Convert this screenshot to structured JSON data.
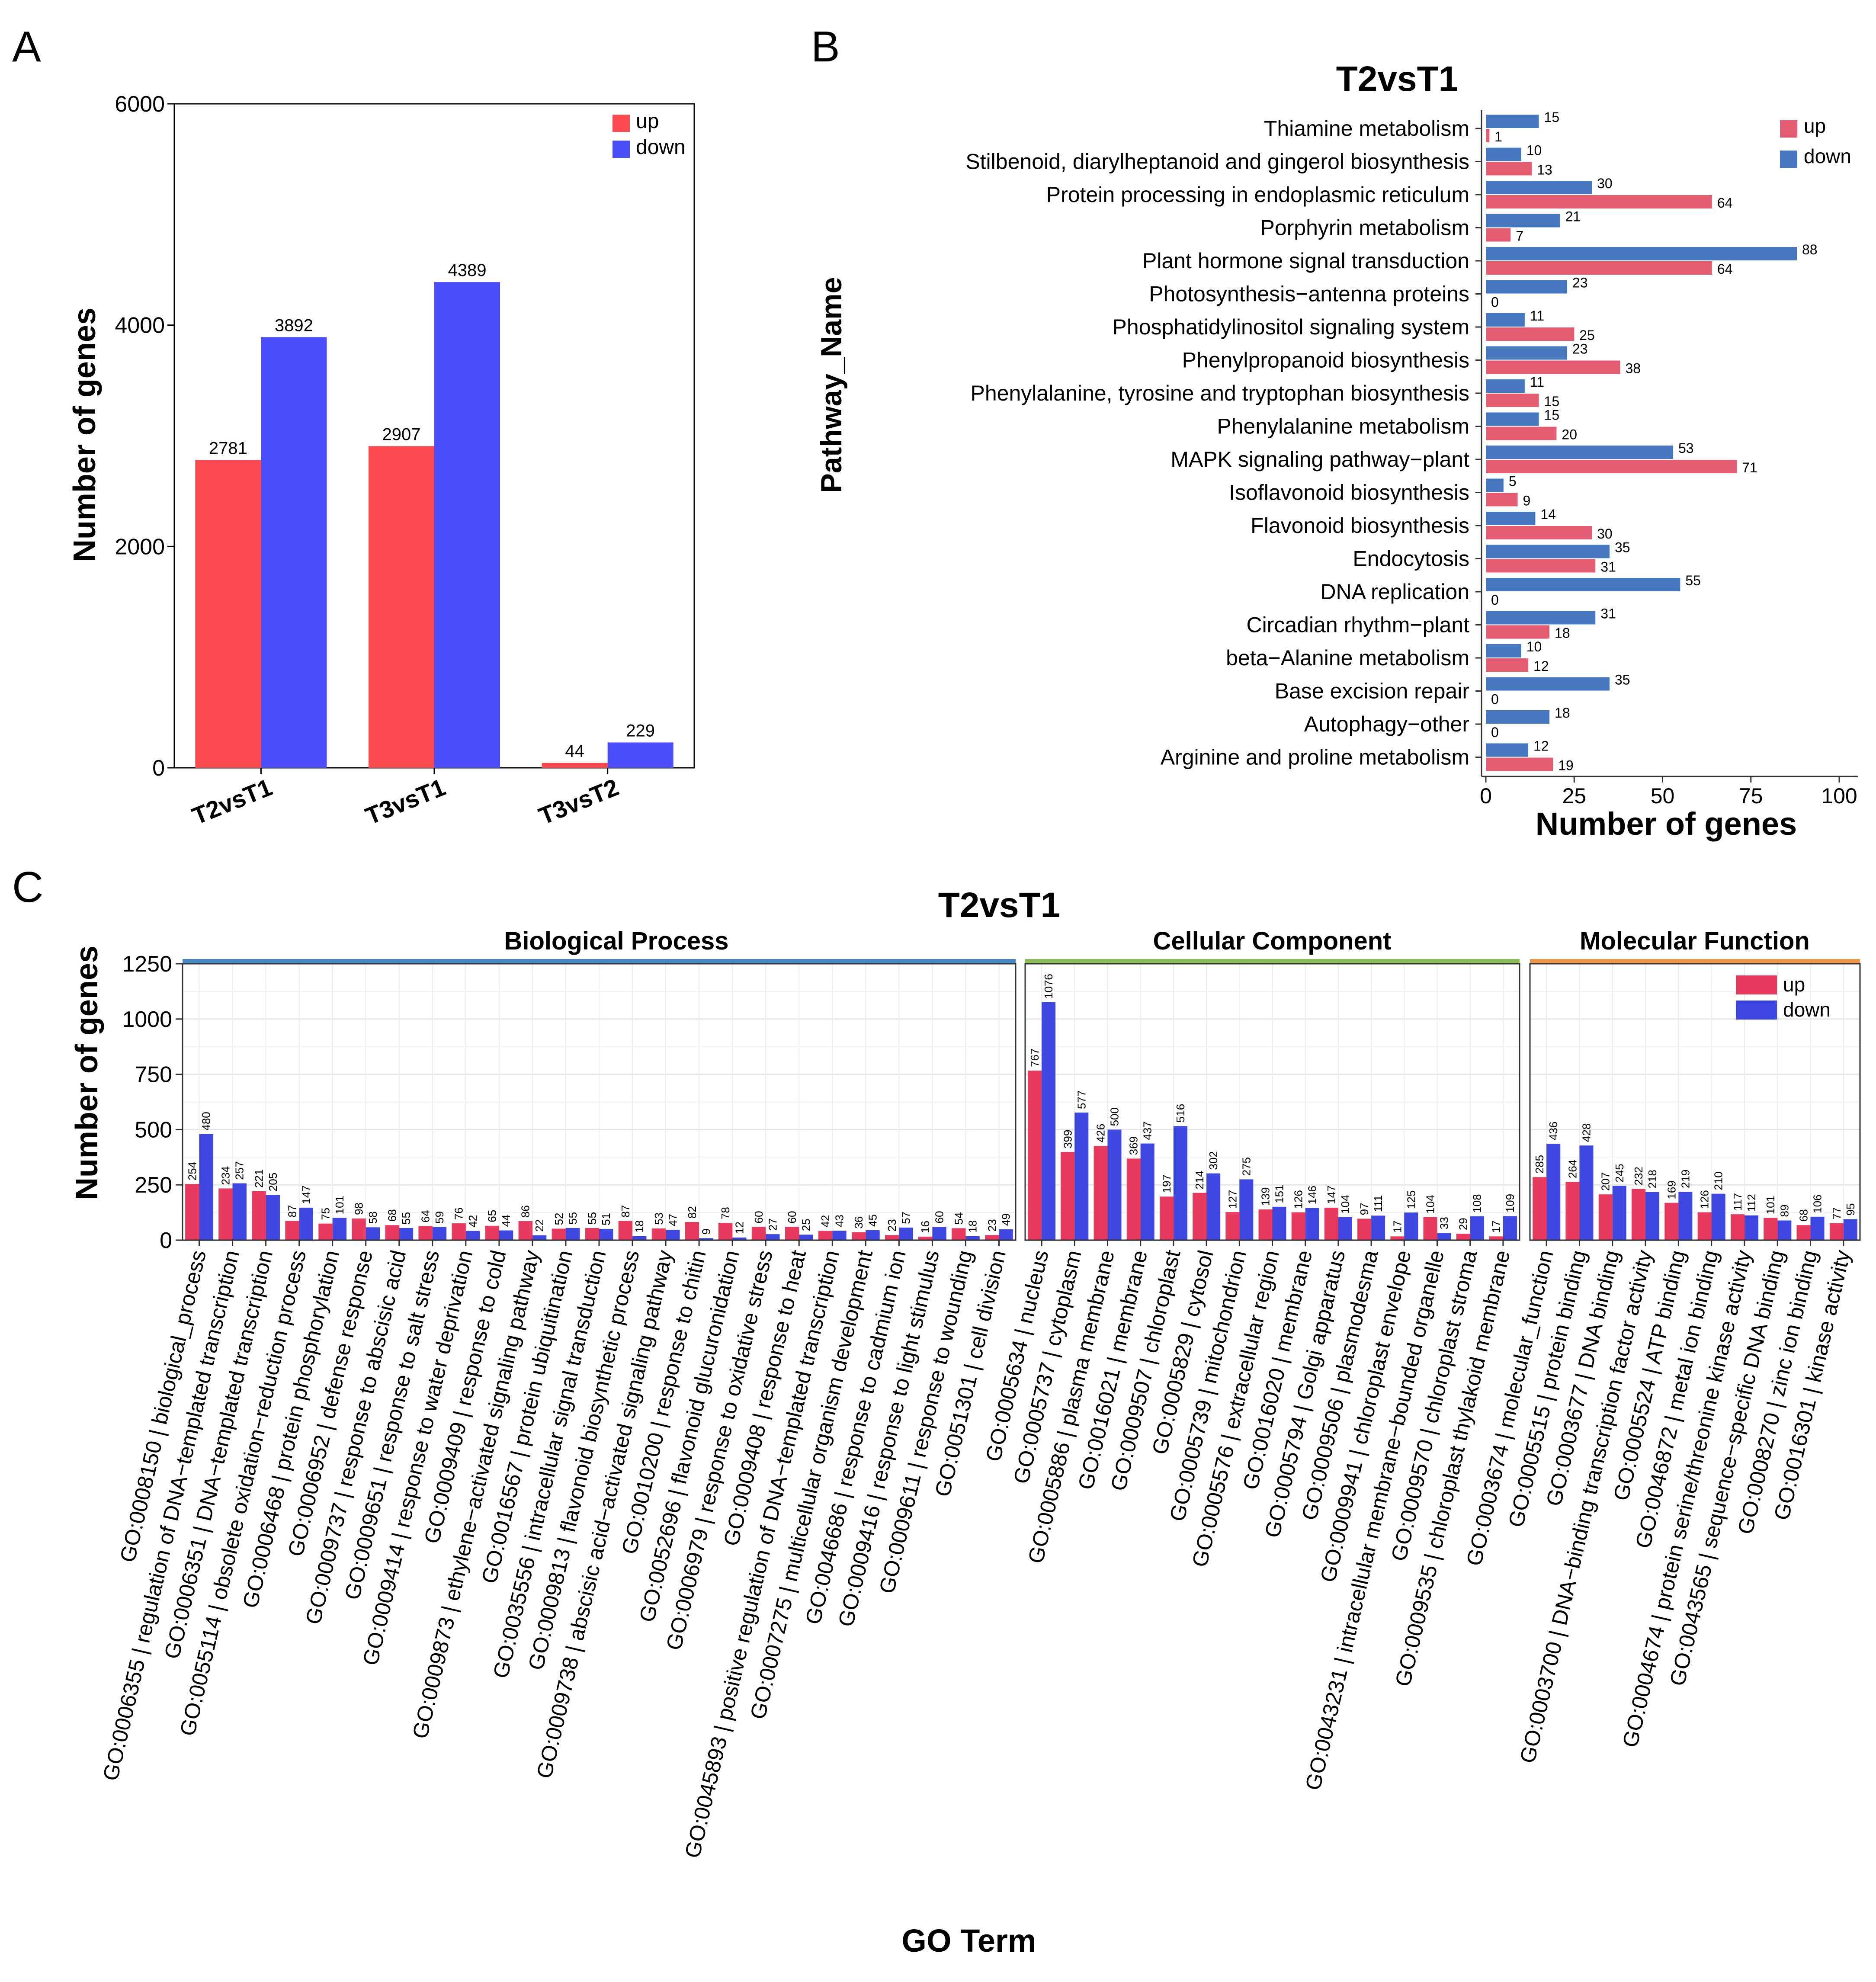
{
  "panel_labels": {
    "a": "A",
    "b": "B",
    "c": "C"
  },
  "colors": {
    "a_up": "#fb4a4f",
    "a_down": "#4a4cf7",
    "b_up": "#e45c72",
    "b_down": "#4677bf",
    "c_up": "#e83a5f",
    "c_down": "#3e48e0",
    "bp": "#4a89c8",
    "cc": "#8dbf5a",
    "mf": "#f0984a"
  },
  "chart_data": [
    {
      "id": "A",
      "type": "bar",
      "title": "",
      "xlabel": "",
      "ylabel": "Number of genes",
      "ylim": [
        0,
        6000
      ],
      "yticks": [
        0,
        2000,
        4000,
        6000
      ],
      "categories": [
        "T2vsT1",
        "T3vsT1",
        "T3vsT2"
      ],
      "series": [
        {
          "name": "up",
          "values": [
            2781,
            2907,
            44
          ]
        },
        {
          "name": "down",
          "values": [
            3892,
            4389,
            229
          ]
        }
      ],
      "legend": "top-right",
      "grid": false
    },
    {
      "id": "B",
      "type": "bar",
      "orientation": "horizontal",
      "title": "T2vsT1",
      "xlabel": "Number of genes",
      "ylabel": "Pathway_Name",
      "xlim": [
        0,
        100
      ],
      "xticks": [
        0,
        25,
        50,
        75,
        100
      ],
      "categories": [
        "Thiamine metabolism",
        "Stilbenoid, diarylheptanoid and gingerol biosynthesis",
        "Protein processing in endoplasmic reticulum",
        "Porphyrin metabolism",
        "Plant hormone signal transduction",
        "Photosynthesis−antenna proteins",
        "Phosphatidylinositol signaling system",
        "Phenylpropanoid biosynthesis",
        "Phenylalanine, tyrosine and tryptophan biosynthesis",
        "Phenylalanine metabolism",
        "MAPK signaling pathway−plant",
        "Isoflavonoid biosynthesis",
        "Flavonoid biosynthesis",
        "Endocytosis",
        "DNA replication",
        "Circadian rhythm−plant",
        "beta−Alanine metabolism",
        "Base excision repair",
        "Autophagy−other",
        "Arginine and proline metabolism"
      ],
      "series": [
        {
          "name": "up",
          "values": [
            1,
            13,
            64,
            7,
            64,
            0,
            25,
            38,
            15,
            20,
            71,
            9,
            30,
            31,
            0,
            18,
            12,
            0,
            0,
            19
          ]
        },
        {
          "name": "down",
          "values": [
            15,
            10,
            30,
            21,
            88,
            23,
            11,
            23,
            11,
            15,
            53,
            5,
            14,
            35,
            55,
            31,
            10,
            35,
            18,
            12
          ]
        }
      ],
      "legend": "top-right",
      "grid": false
    },
    {
      "id": "C",
      "type": "bar",
      "title": "T2vsT1",
      "xlabel": "GO Term",
      "ylabel": "Number of genes",
      "ylim": [
        0,
        1250
      ],
      "yticks": [
        0,
        250,
        500,
        750,
        1000,
        1250
      ],
      "legend": "top-right",
      "grid": true,
      "facets": [
        {
          "name": "Biological Process",
          "categories": [
            "GO:0008150 | biological_process",
            "GO:0006355 | regulation of DNA−templated transcription",
            "GO:0006351 | DNA−templated transcription",
            "GO:0055114 | obsolete oxidation−reduction process",
            "GO:0006468 | protein phosphorylation",
            "GO:0006952 | defense response",
            "GO:0009737 | response to abscisic acid",
            "GO:0009651 | response to salt stress",
            "GO:0009414 | response to water deprivation",
            "GO:0009409 | response to cold",
            "GO:0009873 | ethylene−activated signaling pathway",
            "GO:0016567 | protein ubiquitination",
            "GO:0035556 | intracellular signal transduction",
            "GO:0009813 | flavonoid biosynthetic process",
            "GO:0009738 | abscisic acid−activated signaling pathway",
            "GO:0010200 | response to chitin",
            "GO:0052696 | flavonoid glucuronidation",
            "GO:0006979 | response to oxidative stress",
            "GO:0009408 | response to heat",
            "GO:0045893 | positive regulation of DNA−templated transcription",
            "GO:0007275 | multicellular organism development",
            "GO:0046686 | response to cadmium ion",
            "GO:0009416 | response to light stimulus",
            "GO:0009611 | response to wounding",
            "GO:0051301 | cell division"
          ],
          "up": [
            254,
            234,
            221,
            87,
            75,
            98,
            68,
            64,
            76,
            65,
            86,
            52,
            55,
            87,
            53,
            82,
            78,
            60,
            60,
            42,
            36,
            23,
            16,
            54,
            23
          ],
          "down": [
            480,
            257,
            205,
            147,
            101,
            58,
            55,
            59,
            42,
            44,
            22,
            55,
            51,
            18,
            47,
            9,
            12,
            27,
            25,
            43,
            45,
            57,
            60,
            18,
            49
          ]
        },
        {
          "name": "Cellular Component",
          "categories": [
            "GO:0005634 | nucleus",
            "GO:0005737 | cytoplasm",
            "GO:0005886 | plasma membrane",
            "GO:0016021 | membrane",
            "GO:0009507 | chloroplast",
            "GO:0005829 | cytosol",
            "GO:0005739 | mitochondrion",
            "GO:0005576 | extracellular region",
            "GO:0016020 | membrane",
            "GO:0005794 | Golgi apparatus",
            "GO:0009506 | plasmodesma",
            "GO:0009941 | chloroplast envelope",
            "GO:0043231 | intracellular membrane−bounded organelle",
            "GO:0009570 | chloroplast stroma",
            "GO:0009535 | chloroplast thylakoid membrane"
          ],
          "up": [
            767,
            399,
            426,
            369,
            197,
            214,
            127,
            139,
            126,
            147,
            97,
            17,
            104,
            29,
            17
          ],
          "down": [
            1076,
            577,
            500,
            437,
            516,
            302,
            275,
            151,
            146,
            104,
            111,
            125,
            33,
            108,
            109
          ]
        },
        {
          "name": "Molecular Function",
          "categories": [
            "GO:0003674 | molecular_function",
            "GO:0005515 | protein binding",
            "GO:0003677 | DNA binding",
            "GO:0003700 | DNA−binding transcription factor activity",
            "GO:0005524 | ATP binding",
            "GO:0046872 | metal ion binding",
            "GO:0004674 | protein serine/threonine kinase activity",
            "GO:0043565 | sequence−specific DNA binding",
            "GO:0008270 | zinc ion binding",
            "GO:0016301 | kinase activity"
          ],
          "up": [
            285,
            264,
            207,
            232,
            169,
            126,
            117,
            101,
            68,
            77
          ],
          "down": [
            436,
            428,
            245,
            218,
            219,
            210,
            112,
            89,
            106,
            95
          ]
        }
      ]
    }
  ]
}
